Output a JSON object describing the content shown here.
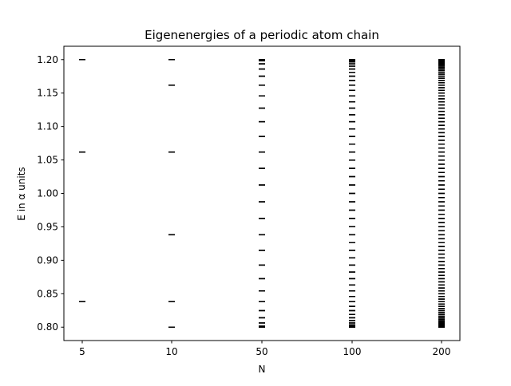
{
  "chart_data": {
    "type": "scatter",
    "title": "Eigenenergies of a periodic atom chain",
    "xlabel": "N",
    "ylabel": "E in α units",
    "ylim": [
      0.78,
      1.22
    ],
    "grid": false,
    "legend": "none",
    "marker": "horizontal-dash",
    "marker_color": "#000000",
    "categories": [
      "5",
      "10",
      "50",
      "100",
      "200"
    ],
    "yticks": [
      0.8,
      0.85,
      0.9,
      0.95,
      1.0,
      1.05,
      1.1,
      1.15,
      1.2
    ],
    "ytick_labels": [
      "0.80",
      "0.85",
      "0.90",
      "0.95",
      "1.00",
      "1.05",
      "1.10",
      "1.15",
      "1.20"
    ],
    "series": [
      {
        "N": 5,
        "values": [
          0.8382,
          0.8382,
          1.0618,
          1.0618,
          1.2
        ]
      },
      {
        "N": 10,
        "values": [
          0.8,
          0.8382,
          0.8382,
          0.9382,
          0.9382,
          1.0618,
          1.0618,
          1.1618,
          1.1618,
          1.2
        ]
      },
      {
        "N": 50,
        "values": []
      },
      {
        "N": 100,
        "values": []
      },
      {
        "N": 200,
        "values": []
      }
    ],
    "series_formula": "E_k = 1.0 + 0.2*cos(2*pi*k/N), k = 0..N-1 (levels for N=50, 100, 200 follow this formula)"
  }
}
